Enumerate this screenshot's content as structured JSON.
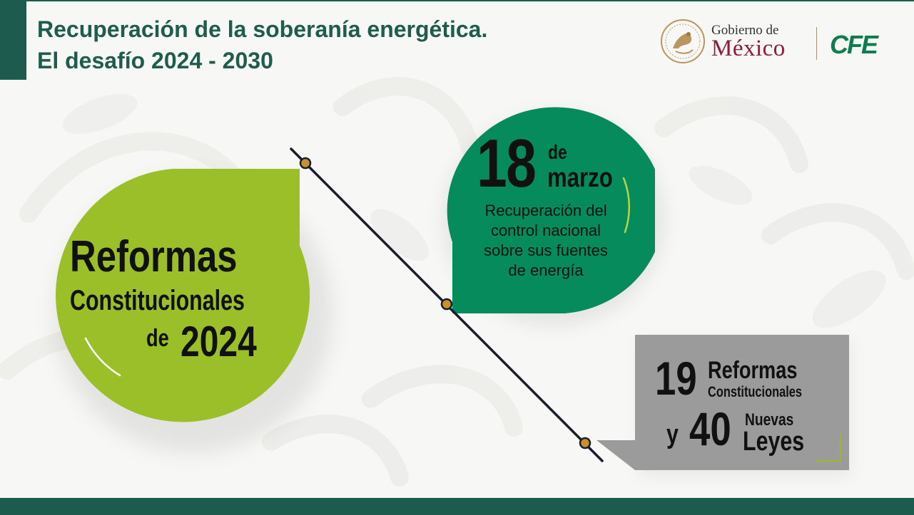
{
  "header": {
    "title_line1": "Recuperación de la soberanía energética.",
    "title_line2": "El desafío 2024 - 2030"
  },
  "logos": {
    "gob_line1": "Gobierno de",
    "gob_line2": "México",
    "cfe": "CFE",
    "seal_icon": "mexico-coat-of-arms-icon"
  },
  "reformas": {
    "line1": "Reformas",
    "line2": "Constitucionales",
    "de": "de",
    "year": "2024"
  },
  "marzo": {
    "day": "18",
    "de": "de",
    "month": "marzo",
    "desc": [
      "Recuperación del",
      "control nacional",
      "sobre sus fuentes",
      "de energía"
    ]
  },
  "stats": {
    "n1": "19",
    "n1_label1": "Reformas",
    "n1_label2": "Constitucionales",
    "y": "y",
    "n2": "40",
    "n2_label1": "Nuevas",
    "n2_label2": "Leyes"
  },
  "colors": {
    "title": "#1f5c4d",
    "dark_green": "#1e5b4f",
    "lime": "#9abf29",
    "emerald": "#068c5c",
    "gray": "#9b9b9b",
    "dot": "#c8902f",
    "mexico_red": "#8c1b3d",
    "cfe_green": "#0d7d4d"
  }
}
